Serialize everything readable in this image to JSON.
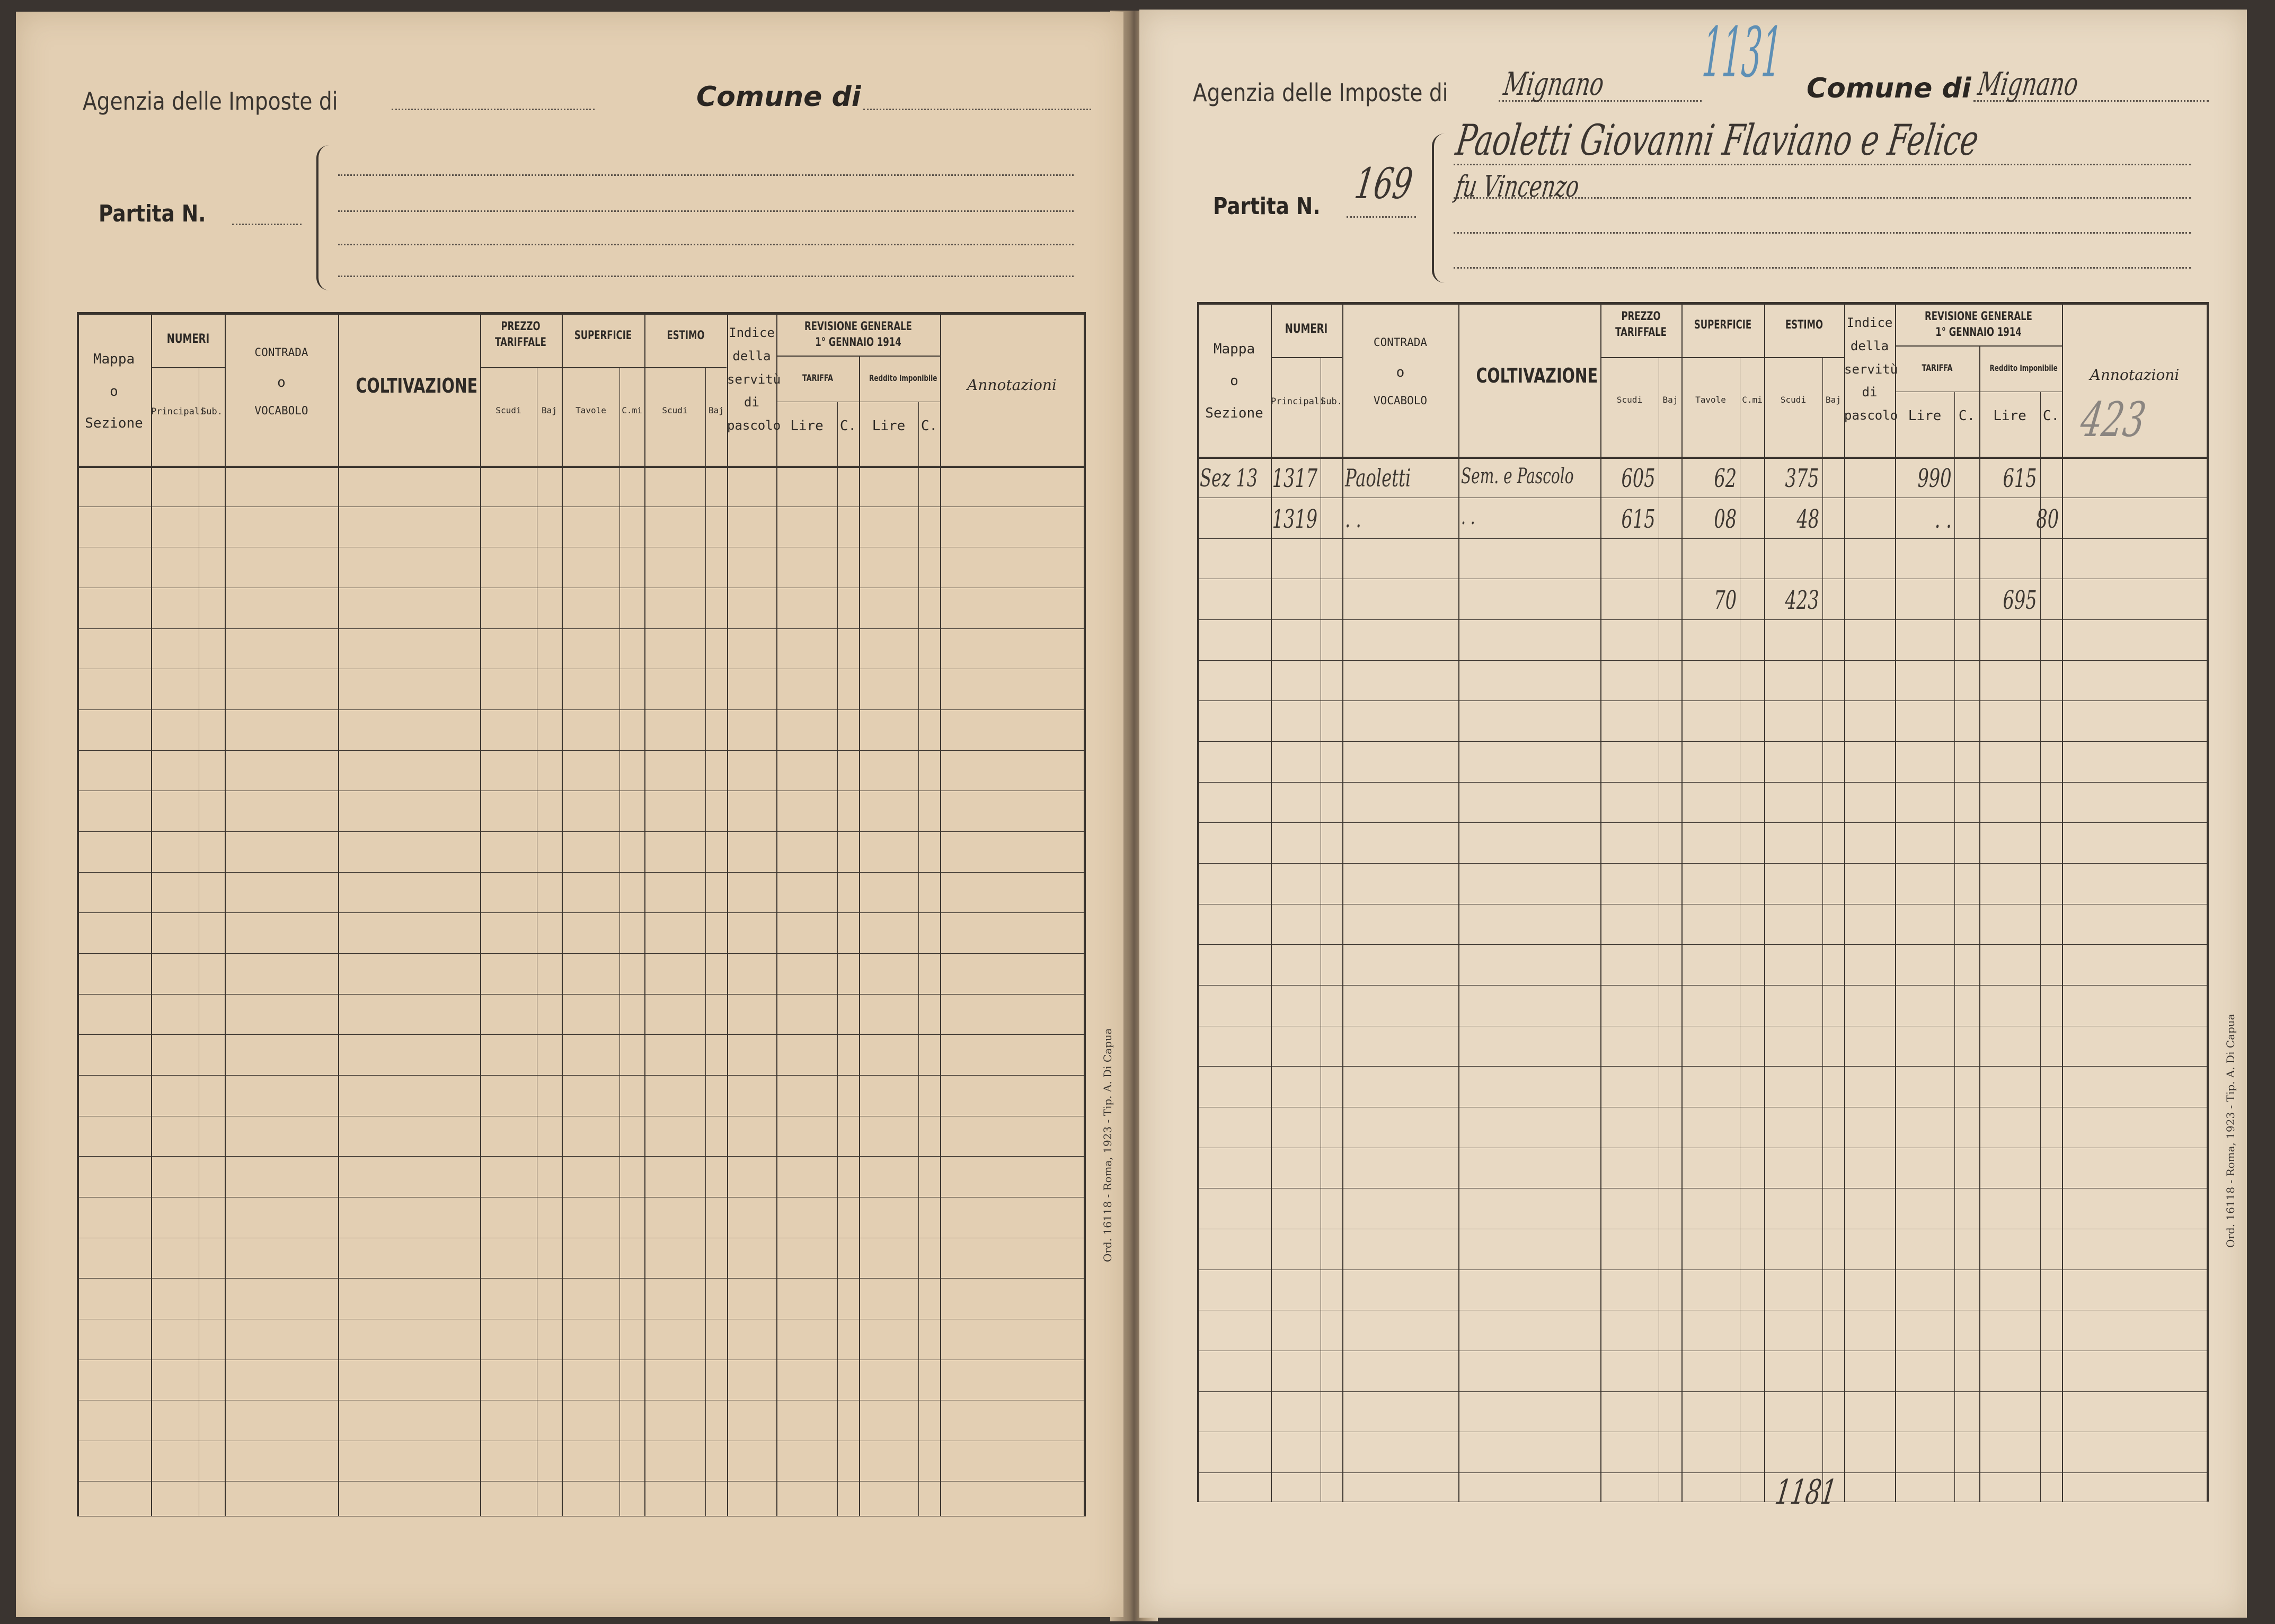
{
  "left_page": {
    "agency_label": "Agenzia delle Imposte di",
    "agency_value": "",
    "comune_label": "Comune di",
    "comune_value": "",
    "partita_label": "Partita N.",
    "partita_value": "",
    "owner_lines": [],
    "imprint": "Ord. 16118 - Roma, 1923 - Tip. A. Di Capua",
    "entries": []
  },
  "right_page": {
    "agency_label": "Agenzia delle Imposte di",
    "agency_value": "Mignano",
    "stamp_number": "1131",
    "comune_label": "Comune di",
    "comune_value": "Mignano",
    "partita_label": "Partita N.",
    "partita_value": "169",
    "owner_lines": [
      "Paoletti Giovanni Flaviano e Felice",
      "fu Vincenzo"
    ],
    "annotation_pencil": "423",
    "imprint": "Ord. 16118 - Roma, 1923 - Tip. A. Di Capua",
    "bottom_note": "1181",
    "entries": [
      {
        "row": 0,
        "col": 0,
        "text": "Sez 13"
      },
      {
        "row": 0,
        "col": 1,
        "text": "1317"
      },
      {
        "row": 0,
        "col": 3,
        "text": "Paoletti"
      },
      {
        "row": 0,
        "col": 4,
        "text": "Sem. e Pascolo"
      },
      {
        "row": 0,
        "col": 5,
        "text": "605"
      },
      {
        "row": 0,
        "col": 7,
        "text": "62"
      },
      {
        "row": 0,
        "col": 9,
        "text": "375"
      },
      {
        "row": 0,
        "col": 12,
        "text": "990"
      },
      {
        "row": 0,
        "col": 14,
        "text": "615"
      },
      {
        "row": 1,
        "col": 1,
        "text": "1319"
      },
      {
        "row": 1,
        "col": 3,
        "text": ". ."
      },
      {
        "row": 1,
        "col": 4,
        "text": ".   ."
      },
      {
        "row": 1,
        "col": 5,
        "text": "615"
      },
      {
        "row": 1,
        "col": 7,
        "text": "08"
      },
      {
        "row": 1,
        "col": 9,
        "text": "48"
      },
      {
        "row": 1,
        "col": 12,
        "text": ". ."
      },
      {
        "row": 1,
        "col": 15,
        "text": "80"
      },
      {
        "row": 3,
        "col": 7,
        "text": "70"
      },
      {
        "row": 3,
        "col": 9,
        "text": "423"
      },
      {
        "row": 3,
        "col": 14,
        "text": "695"
      }
    ]
  },
  "table_header": {
    "mappa": [
      "Mappa",
      "o",
      "Sezione"
    ],
    "numeri": "NUMERI",
    "principali": "Principali",
    "sub": "Sub.",
    "contrada": [
      "CONTRADA",
      "o",
      "VOCABOLO"
    ],
    "coltivazione": "COLTIVAZIONE",
    "prezzo": [
      "PREZZO",
      "TARIFFALE"
    ],
    "superficie": "SUPERFICIE",
    "estimo": "ESTIMO",
    "scudi": "Scudi",
    "baj": "Baj",
    "tavole": "Tavole",
    "cmi": "C.mi",
    "indice": [
      "Indice",
      "della",
      "servitù",
      "di",
      "pascolo"
    ],
    "revisione": [
      "REVISIONE GENERALE",
      "1° GENNAIO 1914"
    ],
    "tariffa": "TARIFFA",
    "reddito": "Reddito Imponibile",
    "lire": "Lire",
    "c": "C.",
    "annotazioni": "Annotazioni"
  },
  "colors": {
    "paper_left": "#e3cfb3",
    "paper_right": "#e8d9c3",
    "ink": "#3b3530",
    "blue_pencil": "#5d8fb5"
  }
}
